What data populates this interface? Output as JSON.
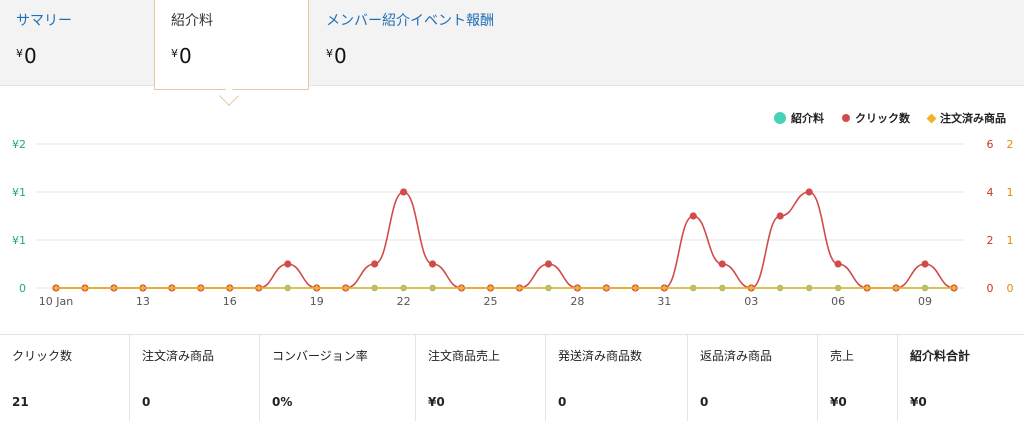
{
  "tabs": [
    {
      "title": "サマリー",
      "value": "0",
      "currency": "¥"
    },
    {
      "title": "紹介料",
      "value": "0",
      "currency": "¥"
    },
    {
      "title": "メンバー紹介イベント報酬",
      "value": "0",
      "currency": "¥"
    }
  ],
  "legend": [
    {
      "label": "紹介料",
      "color": "#46d3b5",
      "shape": "circle"
    },
    {
      "label": "クリック数",
      "color": "#d24b4b",
      "shape": "circle-small"
    },
    {
      "label": "注文済み商品",
      "color": "#f0b429",
      "shape": "diamond"
    }
  ],
  "chart_data": {
    "type": "line",
    "x": [
      "10 Jan",
      "11 Jan",
      "12 Jan",
      "13 Jan",
      "14 Jan",
      "15 Jan",
      "16 Jan",
      "17 Jan",
      "18 Jan",
      "19 Jan",
      "20 Jan",
      "21 Jan",
      "22 Jan",
      "23 Jan",
      "24 Jan",
      "25 Jan",
      "26 Jan",
      "27 Jan",
      "28 Jan",
      "29 Jan",
      "30 Jan",
      "31 Jan",
      "01 Feb",
      "02 Feb",
      "03 Feb",
      "04 Feb",
      "05 Feb",
      "06 Feb",
      "07 Feb",
      "08 Feb",
      "09 Feb",
      "10 Feb"
    ],
    "x_tick_labels": [
      "10 Jan",
      "13",
      "16",
      "19",
      "22",
      "25",
      "28",
      "31",
      "03",
      "06",
      "09"
    ],
    "series": [
      {
        "name": "紹介料",
        "axis": "left",
        "color": "#46d3b5",
        "values": [
          0,
          0,
          0,
          0,
          0,
          0,
          0,
          0,
          0,
          0,
          0,
          0,
          0,
          0,
          0,
          0,
          0,
          0,
          0,
          0,
          0,
          0,
          0,
          0,
          0,
          0,
          0,
          0,
          0,
          0,
          0,
          0
        ]
      },
      {
        "name": "クリック数",
        "axis": "right1",
        "color": "#d24b4b",
        "values": [
          0,
          0,
          0,
          0,
          0,
          0,
          0,
          0,
          1,
          0,
          0,
          1,
          4,
          1,
          0,
          0,
          0,
          1,
          0,
          0,
          0,
          0,
          3,
          1,
          0,
          3,
          4,
          1,
          0,
          0,
          1,
          0
        ]
      },
      {
        "name": "注文済み商品",
        "axis": "right2",
        "color": "#f0b429",
        "values": [
          0,
          0,
          0,
          0,
          0,
          0,
          0,
          0,
          0,
          0,
          0,
          0,
          0,
          0,
          0,
          0,
          0,
          0,
          0,
          0,
          0,
          0,
          0,
          0,
          0,
          0,
          0,
          0,
          0,
          0,
          0,
          0
        ]
      }
    ],
    "y_left": {
      "ticks": [
        "0",
        "¥1",
        "¥1",
        "¥2"
      ],
      "color": "#1ea88a"
    },
    "y_right1": {
      "ticks": [
        "0",
        "2",
        "4",
        "6"
      ],
      "max": 6,
      "color": "#c0392b"
    },
    "y_right2": {
      "ticks": [
        "0",
        "1",
        "1",
        "2"
      ],
      "max": 2,
      "color": "#e08a00"
    },
    "grid": true,
    "legend_position": "top-right"
  },
  "stats": [
    {
      "label": "クリック数",
      "value": "21"
    },
    {
      "label": "注文済み商品",
      "value": "0"
    },
    {
      "label": "コンバージョン率",
      "value": "0%"
    },
    {
      "label": "注文商品売上",
      "value": "¥0"
    },
    {
      "label": "発送済み商品数",
      "value": "0"
    },
    {
      "label": "返品済み商品",
      "value": "0"
    },
    {
      "label": "売上",
      "value": "¥0"
    },
    {
      "label": "紹介料合計",
      "value": "¥0"
    }
  ]
}
